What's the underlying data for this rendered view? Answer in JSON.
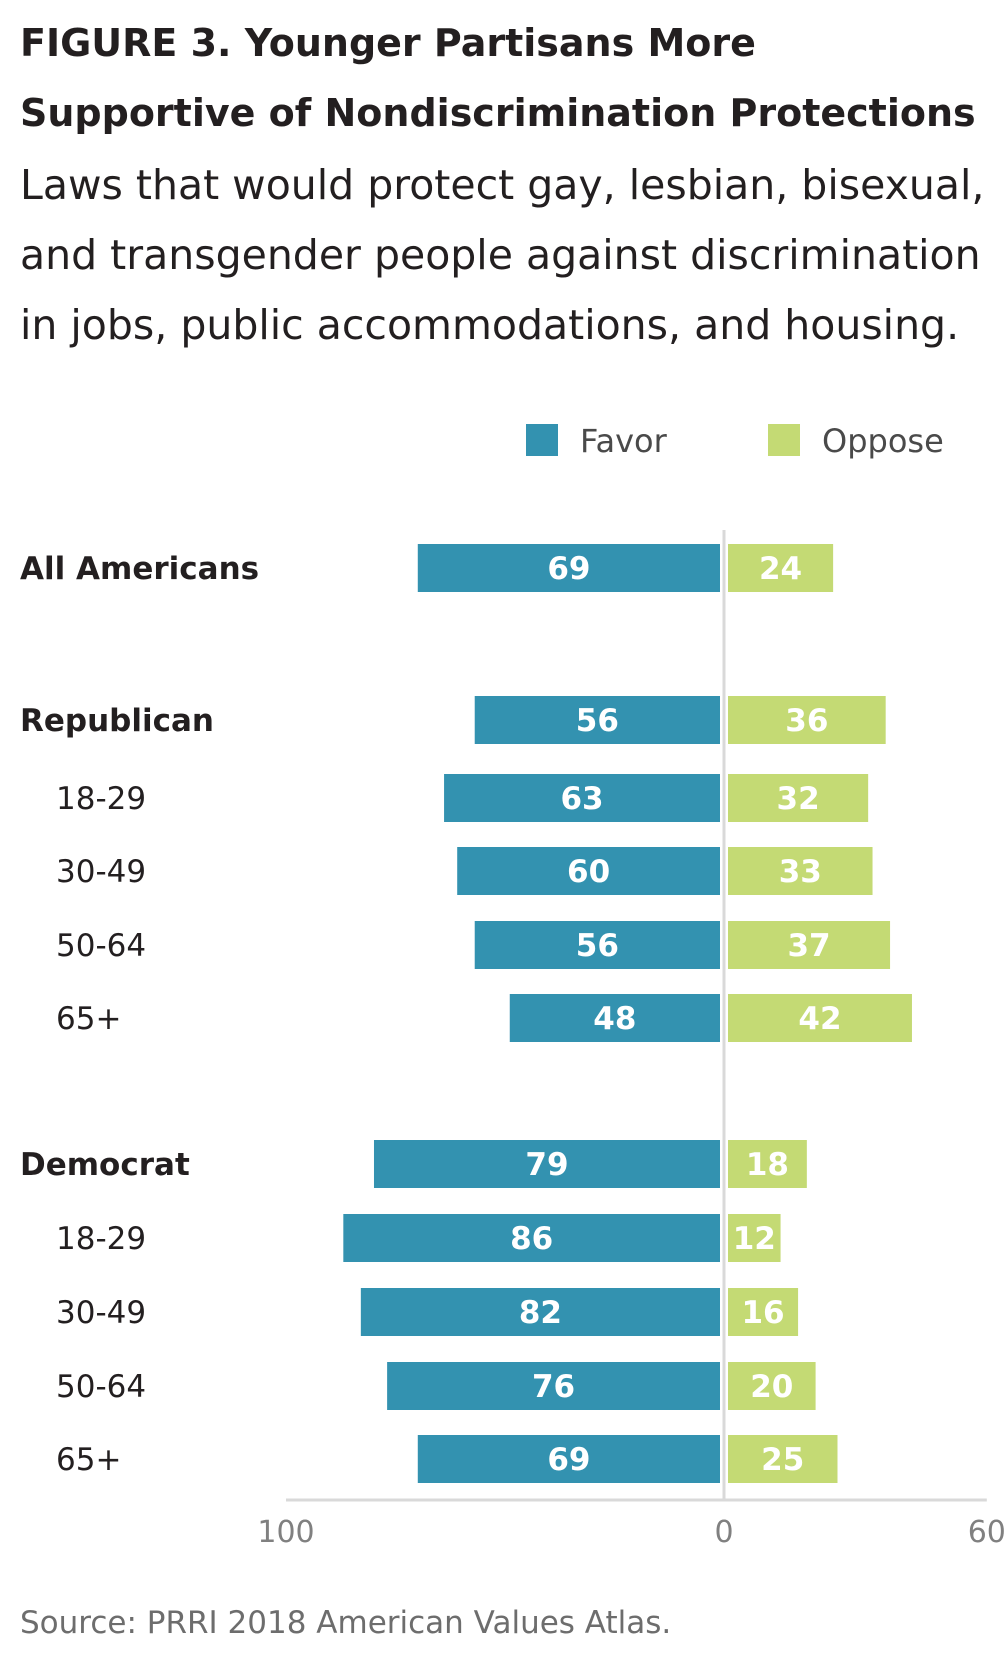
{
  "title": "FIGURE 3. Younger Partisans More Supportive of Nondiscrimination Protections",
  "subtitle": "Laws that would protect gay, lesbian, bisexual, and transgender people against discrimination in jobs, public accommodations, and housing.",
  "source": "Source: PRRI 2018 American Values Atlas.",
  "colors": {
    "favor": "#3392b0",
    "oppose": "#c4da74",
    "axis": "#d9d9d9"
  },
  "chart_data": {
    "type": "bar",
    "orientation": "horizontal-diverging",
    "categories": [
      "All Americans",
      "Republican",
      "18-29",
      "30-49",
      "50-64",
      "65+",
      "Democrat",
      "18-29",
      "30-49",
      "50-64",
      "65+"
    ],
    "category_levels": [
      "main",
      "main",
      "sub",
      "sub",
      "sub",
      "sub",
      "main",
      "sub",
      "sub",
      "sub",
      "sub"
    ],
    "series": [
      {
        "name": "Favor",
        "direction": "left",
        "values": [
          69,
          56,
          63,
          60,
          56,
          48,
          79,
          86,
          82,
          76,
          69
        ]
      },
      {
        "name": "Oppose",
        "direction": "right",
        "values": [
          24,
          36,
          32,
          33,
          37,
          42,
          18,
          12,
          16,
          20,
          25
        ]
      }
    ],
    "xlim": [
      -100,
      60
    ],
    "ticks": [
      {
        "value": -100,
        "label": "100"
      },
      {
        "value": 0,
        "label": "0"
      },
      {
        "value": 60,
        "label": "60"
      }
    ],
    "legend": "top-right",
    "grid": false
  }
}
